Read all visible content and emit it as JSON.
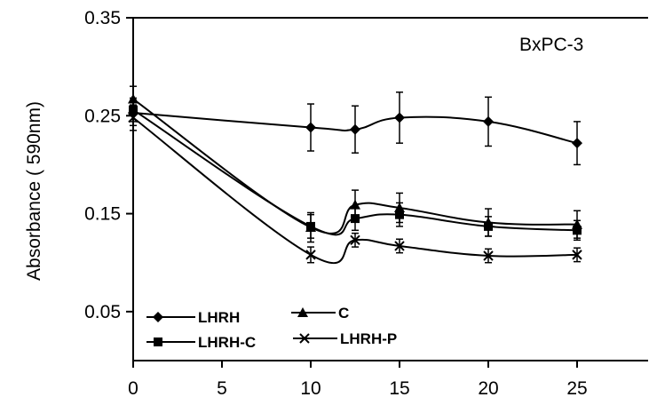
{
  "chart_data": {
    "type": "line",
    "title": "",
    "annotation": "BxPC-3",
    "xlabel": "",
    "ylabel": "Absorbance ( 590nm)",
    "xlim": [
      0,
      29
    ],
    "ylim": [
      0.0,
      0.35
    ],
    "x_ticks": [
      "0",
      "5",
      "10",
      "15",
      "20",
      "25"
    ],
    "y_ticks": [
      "0.05",
      "0.15",
      "0.25",
      "0.35"
    ],
    "grid": false,
    "legend_position": "bottom-left",
    "series": [
      {
        "name": "LHRH",
        "marker": "diamond",
        "x": [
          0,
          10,
          12.5,
          15,
          20,
          25
        ],
        "y": [
          0.253,
          0.238,
          0.236,
          0.248,
          0.244,
          0.222
        ],
        "error": [
          0.013,
          0.024,
          0.024,
          0.026,
          0.025,
          0.022
        ]
      },
      {
        "name": "C",
        "marker": "triangle",
        "x": [
          0,
          10,
          12.5,
          15,
          20,
          25
        ],
        "y": [
          0.267,
          0.136,
          0.159,
          0.156,
          0.141,
          0.139
        ],
        "error": [
          0.013,
          0.015,
          0.015,
          0.015,
          0.014,
          0.014
        ]
      },
      {
        "name": "LHRH-C",
        "marker": "square",
        "x": [
          0,
          10,
          12.5,
          15,
          20,
          25
        ],
        "y": [
          0.256,
          0.137,
          0.145,
          0.149,
          0.137,
          0.133
        ],
        "error": [
          0.012,
          0.012,
          0.012,
          0.012,
          0.01,
          0.01
        ]
      },
      {
        "name": "LHRH-P",
        "marker": "x",
        "x": [
          0,
          10,
          12.5,
          15,
          20,
          25
        ],
        "y": [
          0.248,
          0.108,
          0.123,
          0.117,
          0.107,
          0.108
        ],
        "error": [
          0.013,
          0.008,
          0.007,
          0.007,
          0.007,
          0.007
        ]
      }
    ]
  }
}
